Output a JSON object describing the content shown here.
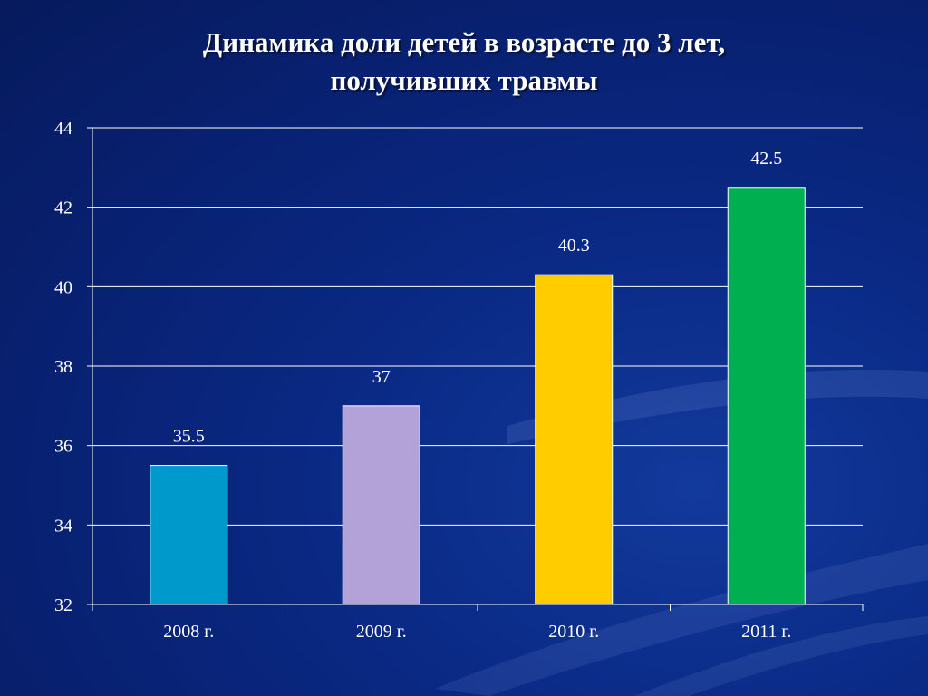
{
  "chart_data": {
    "type": "bar",
    "title_lines": [
      "Динамика доли детей в возрасте до 3 лет,",
      "получивших травмы"
    ],
    "categories": [
      "2008 г.",
      "2009 г.",
      "2010 г.",
      "2011 г."
    ],
    "values": [
      35.5,
      37,
      40.3,
      42.5
    ],
    "value_labels": [
      "35.5",
      "37",
      "40.3",
      "42.5"
    ],
    "colors": [
      "#0099cc",
      "#b3a2d8",
      "#ffcc00",
      "#00b050"
    ],
    "ylim": [
      32,
      44
    ],
    "yticks": [
      32,
      34,
      36,
      38,
      40,
      42,
      44
    ],
    "xlabel": "",
    "ylabel": "",
    "grid": true,
    "legend": "none"
  }
}
